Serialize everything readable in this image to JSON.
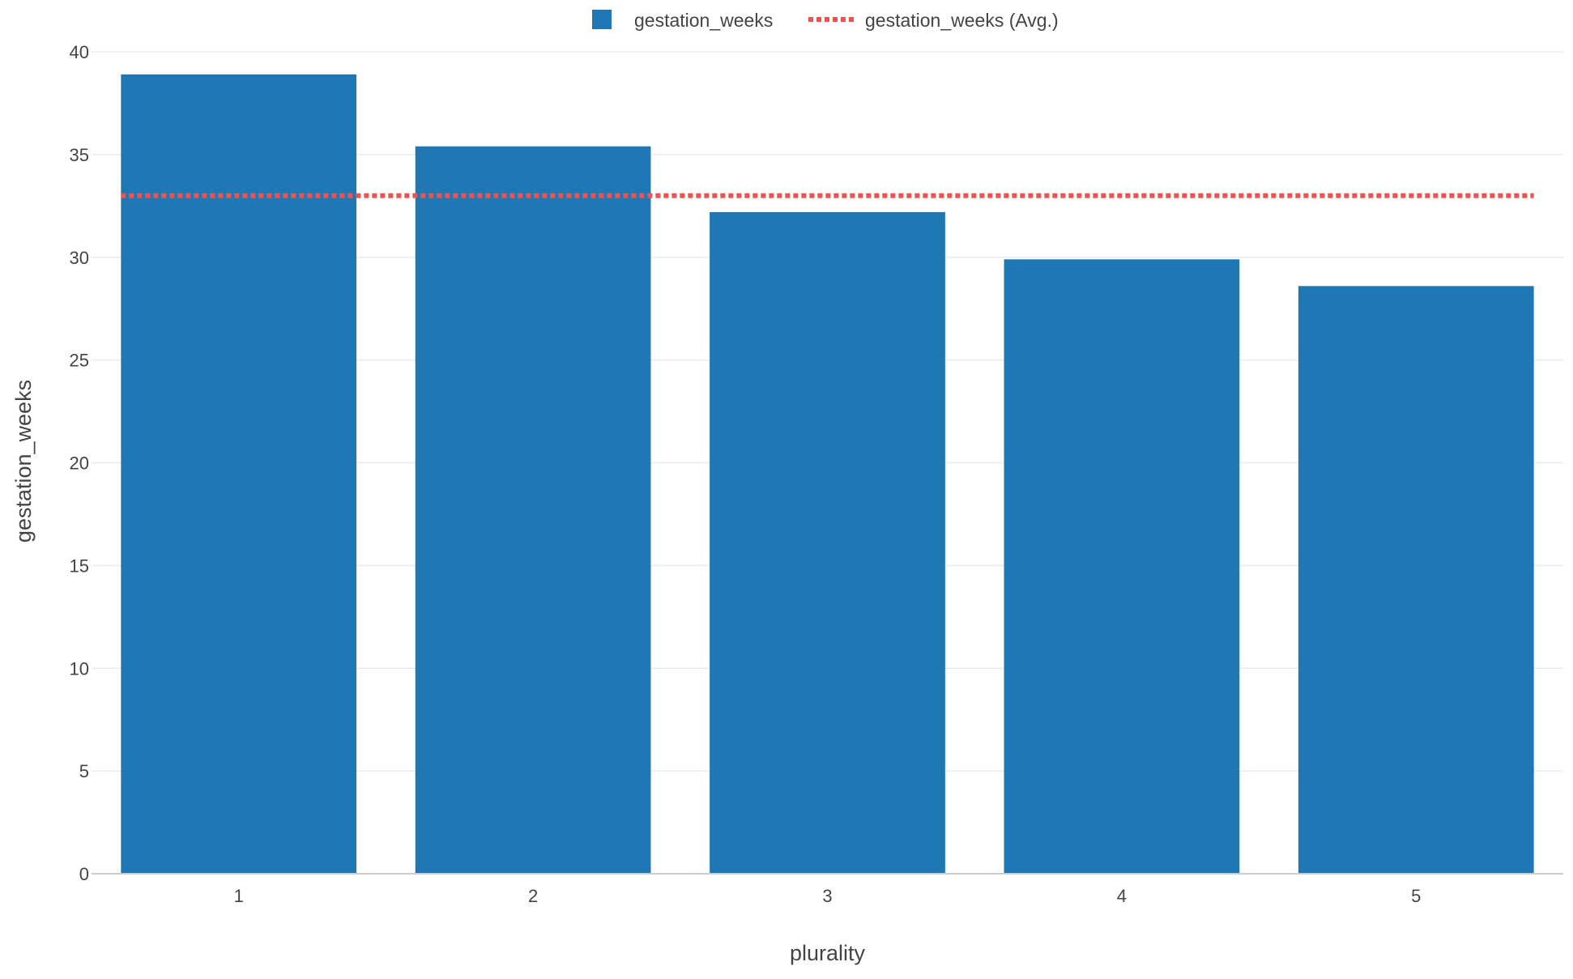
{
  "chart_data": {
    "type": "bar",
    "categories": [
      "1",
      "2",
      "3",
      "4",
      "5"
    ],
    "series": [
      {
        "name": "gestation_weeks",
        "values": [
          38.9,
          35.4,
          32.2,
          29.9,
          28.6
        ],
        "color": "#1f77b4"
      }
    ],
    "average_line": {
      "name": "gestation_weeks (Avg.)",
      "value": 33.0,
      "color": "#ef5350",
      "style": "dotted"
    },
    "xlabel": "plurality",
    "ylabel": "gestation_weeks",
    "ylim": [
      0,
      40
    ],
    "yticks": [
      0,
      5,
      10,
      15,
      20,
      25,
      30,
      35,
      40
    ],
    "grid": true,
    "legend_position": "top-center"
  }
}
